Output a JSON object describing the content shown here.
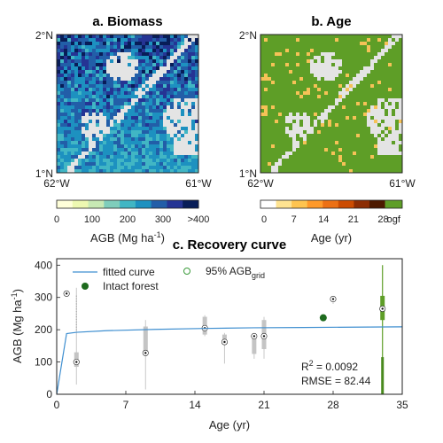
{
  "panels": {
    "a": {
      "title": "a. Biomass",
      "lat_top": "2°N",
      "lat_bottom": "1°N",
      "lon_left": "62°W",
      "lon_right": "61°W",
      "colorbar_ticks": [
        "0",
        "100",
        "200",
        "300",
        ">400"
      ],
      "colorbar_label_main": "AGB (Mg ha",
      "colorbar_label_sup": "-1",
      "colorbar_label_end": ")",
      "colors": [
        "#ffffd9",
        "#edf8b1",
        "#c7e9b4",
        "#7fcdbb",
        "#41b6c4",
        "#1d91c0",
        "#225ea8",
        "#253494",
        "#081d58"
      ]
    },
    "b": {
      "title": "b. Age",
      "lat_top": "2°N",
      "lat_bottom": "1°N",
      "lon_left": "62°W",
      "lon_right": "61°W",
      "colorbar_ticks": [
        "0",
        "7",
        "14",
        "21",
        "28",
        "ogf"
      ],
      "colorbar_label": "Age (yr)",
      "colors": [
        "#ffffff",
        "#fee391",
        "#fec44f",
        "#fe9929",
        "#ec7014",
        "#cc4c02",
        "#8c2d04",
        "#4d1a00"
      ],
      "ogf_color": "#5e9e27"
    }
  },
  "chart_data": {
    "type": "box",
    "title": "c. Recovery curve",
    "xlabel": "Age (yr)",
    "ylabel_main": "AGB (Mg ha",
    "ylabel_sup": "-1",
    "ylabel_end": ")",
    "xlim": [
      0,
      35
    ],
    "ylim": [
      0,
      420
    ],
    "xticks": [
      0,
      7,
      14,
      21,
      28,
      35
    ],
    "yticks": [
      0,
      100,
      200,
      300,
      400
    ],
    "legend": {
      "fitted": "fitted curve",
      "pct_main": "95% AGB",
      "pct_sub": "grid",
      "intact": "Intact forest"
    },
    "stats": {
      "r2_main": "R",
      "r2_sup": "2",
      "r2_val": " = 0.0092",
      "rmse": "RMSE = 82.44"
    },
    "fitted_curve": [
      [
        0,
        0
      ],
      [
        1,
        188
      ],
      [
        2,
        192
      ],
      [
        5,
        197
      ],
      [
        10,
        201
      ],
      [
        15,
        204
      ],
      [
        20,
        206
      ],
      [
        25,
        207
      ],
      [
        30,
        208
      ],
      [
        35,
        209
      ]
    ],
    "boxes": [
      {
        "age": 2,
        "q1": 85,
        "median": 100,
        "q3": 130,
        "wlo": 30,
        "whi": 330,
        "p95": 310
      },
      {
        "age": 9,
        "q1": 125,
        "median": 128,
        "q3": 210,
        "wlo": 15,
        "whi": 230
      },
      {
        "age": 15,
        "q1": 185,
        "median": 205,
        "q3": 240,
        "wlo": 180,
        "whi": 245
      },
      {
        "age": 17,
        "q1": 160,
        "median": 162,
        "q3": 185,
        "wlo": 95,
        "whi": 190
      },
      {
        "age": 20,
        "q1": 125,
        "median": 180,
        "q3": 185,
        "wlo": 110,
        "whi": 188
      },
      {
        "age": 21,
        "q1": 140,
        "median": 180,
        "q3": 230,
        "wlo": 110,
        "whi": 240
      },
      {
        "age": 28,
        "median": 295,
        "q1": 292,
        "q3": 300,
        "wlo": 280,
        "whi": 305
      }
    ],
    "intact": {
      "age": 27,
      "agb": 237
    },
    "ogf_box": {
      "age": 33,
      "q1": 230,
      "median": 265,
      "q3": 305,
      "wlo": 0,
      "whi": 400
    }
  }
}
